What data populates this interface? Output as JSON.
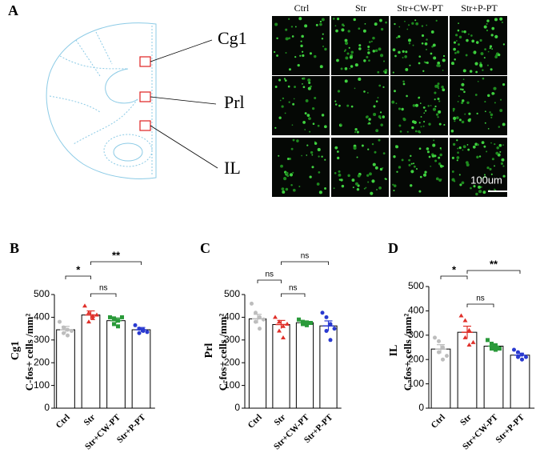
{
  "panel_a": {
    "label": "A",
    "regions": [
      "Cg1",
      "Prl",
      "IL"
    ],
    "columns": [
      "Ctrl",
      "Str",
      "Str+CW-PT",
      "Str+P-PT"
    ],
    "scale_bar": "100um"
  },
  "chart_data": [
    {
      "type": "bar",
      "panel": "B",
      "region_label": "Cg1",
      "ylabel": "C-fos+ cells /mm²",
      "categories": [
        "Ctrl",
        "Str",
        "Str+CW-PT",
        "Str+P-PT"
      ],
      "colors": [
        "#bdbdbd",
        "#e0302a",
        "#2a9a3a",
        "#2a3ad0"
      ],
      "values": [
        345,
        410,
        385,
        345
      ],
      "errors": [
        15,
        18,
        12,
        10
      ],
      "points": [
        [
          380,
          355,
          345,
          330,
          320,
          340
        ],
        [
          450,
          420,
          405,
          380,
          395,
          410
        ],
        [
          400,
          395,
          385,
          370,
          360,
          400
        ],
        [
          365,
          350,
          340,
          330,
          345,
          335
        ]
      ],
      "ylim": [
        0,
        500
      ],
      "yticks": [
        0,
        100,
        200,
        300,
        400,
        500
      ],
      "annotations": [
        {
          "text": "*",
          "from": "Ctrl",
          "to": "Str"
        },
        {
          "text": "**",
          "from": "Str",
          "to": "Str+P-PT"
        },
        {
          "text": "ns",
          "from": "Str",
          "to": "Str+CW-PT"
        }
      ]
    },
    {
      "type": "bar",
      "panel": "C",
      "region_label": "Prl",
      "ylabel": "C-fos+ cells /mm²",
      "categories": [
        "Ctrl",
        "Str",
        "Str+CW-PT",
        "Str+P-PT"
      ],
      "colors": [
        "#bdbdbd",
        "#e0302a",
        "#2a9a3a",
        "#2a3ad0"
      ],
      "values": [
        393,
        368,
        376,
        362
      ],
      "errors": [
        20,
        18,
        8,
        22
      ],
      "points": [
        [
          460,
          420,
          400,
          380,
          350,
          390
        ],
        [
          400,
          380,
          360,
          340,
          310,
          370
        ],
        [
          390,
          380,
          375,
          370,
          365,
          375
        ],
        [
          420,
          400,
          370,
          340,
          300,
          350
        ]
      ],
      "ylim": [
        0,
        500
      ],
      "yticks": [
        0,
        100,
        200,
        300,
        400,
        500
      ],
      "annotations": [
        {
          "text": "ns",
          "from": "Ctrl",
          "to": "Str"
        },
        {
          "text": "ns",
          "from": "Str",
          "to": "Str+P-PT"
        },
        {
          "text": "ns",
          "from": "Str",
          "to": "Str+CW-PT"
        }
      ]
    },
    {
      "type": "bar",
      "panel": "D",
      "region_label": "IL",
      "ylabel": "C-fos+ cells /mm²",
      "categories": [
        "Ctrl",
        "Str",
        "Str+CW-PT",
        "Str+P-PT"
      ],
      "colors": [
        "#bdbdbd",
        "#e0302a",
        "#2a9a3a",
        "#2a3ad0"
      ],
      "values": [
        243,
        312,
        255,
        218
      ],
      "errors": [
        18,
        25,
        10,
        8
      ],
      "points": [
        [
          290,
          275,
          250,
          230,
          200,
          215
        ],
        [
          380,
          360,
          320,
          290,
          260,
          270
        ],
        [
          280,
          265,
          255,
          245,
          240,
          245
        ],
        [
          240,
          230,
          220,
          210,
          200,
          210
        ]
      ],
      "ylim": [
        0,
        500
      ],
      "yticks": [
        0,
        100,
        200,
        300,
        400,
        500
      ],
      "annotations": [
        {
          "text": "*",
          "from": "Ctrl",
          "to": "Str"
        },
        {
          "text": "**",
          "from": "Str",
          "to": "Str+P-PT"
        },
        {
          "text": "ns",
          "from": "Str",
          "to": "Str+CW-PT"
        }
      ]
    }
  ]
}
